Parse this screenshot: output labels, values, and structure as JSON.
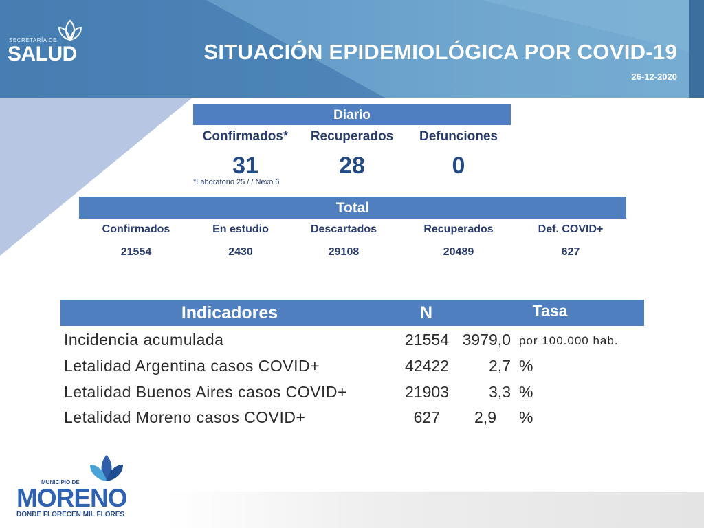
{
  "header": {
    "logo_small_text": "SECRETARÍA DE",
    "logo_main_text": "SALUD",
    "title": "SITUACIÓN EPIDEMIOLÓGICA POR COVID-19",
    "date": "26-12-2020"
  },
  "diario": {
    "band_label": "Diario",
    "columns": [
      {
        "label": "Confirmados*",
        "value": "31"
      },
      {
        "label": "Recuperados",
        "value": "28"
      },
      {
        "label": "Defunciones",
        "value": "0"
      }
    ],
    "footnote": "*Laboratorio 25 / / Nexo 6"
  },
  "total": {
    "band_label": "Total",
    "columns": [
      {
        "label": "Confirmados",
        "value": "21554"
      },
      {
        "label": "En estudio",
        "value": "2430"
      },
      {
        "label": "Descartados",
        "value": "29108"
      },
      {
        "label": "Recuperados",
        "value": "20489"
      },
      {
        "label": "Def. COVID+",
        "value": "627"
      }
    ]
  },
  "indicadores": {
    "header_label": "Indicadores",
    "header_n": "N",
    "header_tasa": "Tasa",
    "rows": [
      {
        "label": "Incidencia acumulada",
        "n": "21554",
        "tasa": "3979,0",
        "unit": "por 100.000 hab."
      },
      {
        "label": "Letalidad Argentina casos COVID+",
        "n": "42422",
        "tasa": "2,7",
        "unit": "%"
      },
      {
        "label": "Letalidad Buenos Aires casos COVID+",
        "n": "21903",
        "tasa": "3,3",
        "unit": "%"
      },
      {
        "label": "Letalidad Moreno casos COVID+",
        "n": "627",
        "tasa": "2,9",
        "unit": "%"
      }
    ]
  },
  "footer_logo": {
    "small_text": "MUNICIPIO DE",
    "main_text": "MORENO",
    "tagline": "DONDE FLORECEN MIL FLORES"
  },
  "colors": {
    "band": "#4f7fbe",
    "header": "#5b95c4",
    "text_dark": "#2a3c6b"
  }
}
